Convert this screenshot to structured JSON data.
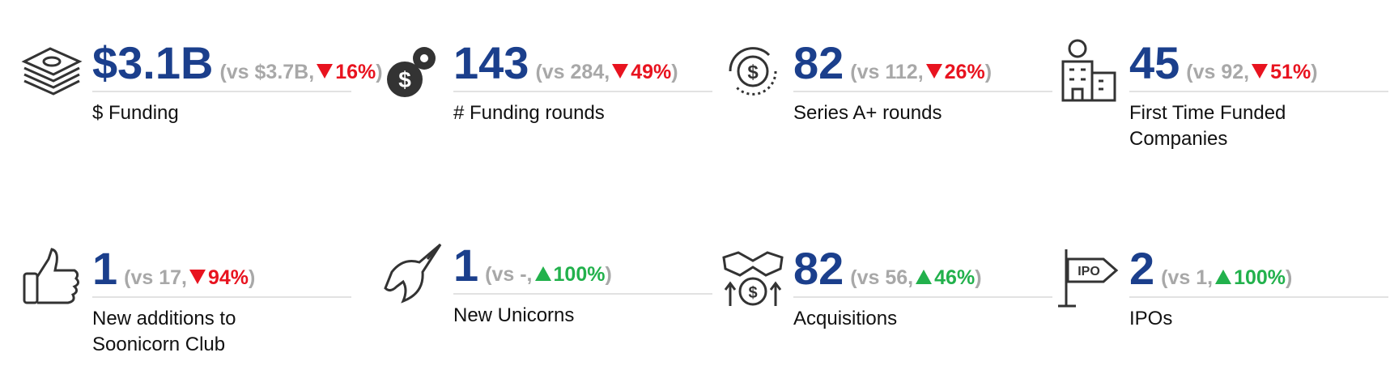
{
  "kpis": [
    {
      "value": "$3.1B",
      "open": "(vs $3.7B,",
      "change": "16%",
      "close": ")",
      "direction": "down",
      "label": "$ Funding"
    },
    {
      "value": "143",
      "open": "(vs 284,",
      "change": "49%",
      "close": ")",
      "direction": "down",
      "label": "# Funding rounds"
    },
    {
      "value": "82",
      "open": "(vs 112,",
      "change": "26%",
      "close": ")",
      "direction": "down",
      "label": "Series A+ rounds"
    },
    {
      "value": "45",
      "open": "(vs 92,",
      "change": "51%",
      "close": ")",
      "direction": "down",
      "label": "First Time Funded Companies"
    },
    {
      "value": "1",
      "open": "(vs 17,",
      "change": "94%",
      "close": ")",
      "direction": "down",
      "label": "New additions to Soonicorn Club"
    },
    {
      "value": "1",
      "open": "(vs -,",
      "change": "100%",
      "close": ")",
      "direction": "up",
      "label": "New Unicorns"
    },
    {
      "value": "82",
      "open": "(vs 56,",
      "change": "46%",
      "close": ")",
      "direction": "up",
      "label": "Acquisitions"
    },
    {
      "value": "2",
      "open": "(vs 1,",
      "change": "100%",
      "close": ")",
      "direction": "up",
      "label": "IPOs",
      "icon_label": "IPO"
    }
  ]
}
